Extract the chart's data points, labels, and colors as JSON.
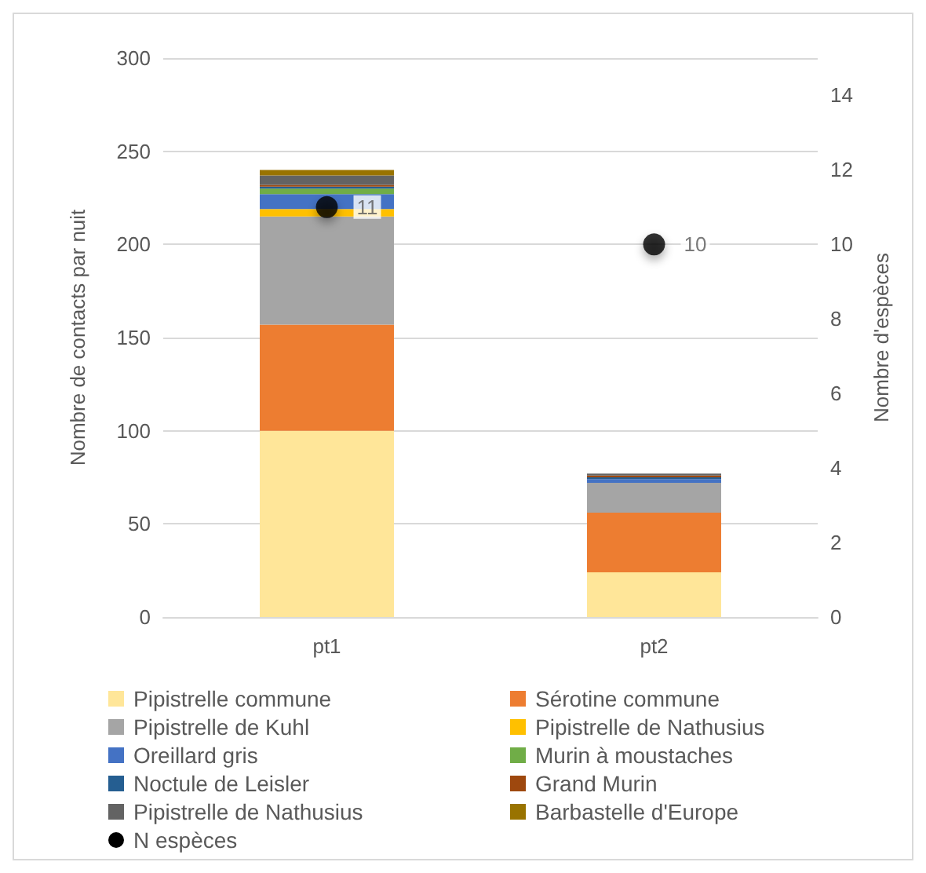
{
  "chart_data": {
    "type": "bar",
    "stacked": true,
    "categories": [
      "pt1",
      "pt2"
    ],
    "ylabel": "Nombre de contacts par nuit",
    "y2label": "Nombre d'espèces",
    "ylim": [
      0,
      300
    ],
    "yticks": [
      0,
      50,
      100,
      150,
      200,
      250,
      300
    ],
    "y2lim": [
      0,
      15
    ],
    "y2ticks": [
      0,
      2,
      4,
      6,
      8,
      10,
      12,
      14
    ],
    "grid": "y",
    "legend": "bottom",
    "series": [
      {
        "name": "Pipistrelle commune",
        "color": "#ffe699",
        "values": [
          100,
          24
        ]
      },
      {
        "name": "Sérotine commune",
        "color": "#ed7d31",
        "values": [
          57,
          32
        ]
      },
      {
        "name": "Pipistrelle de Kuhl",
        "color": "#a5a5a5",
        "values": [
          58,
          16
        ]
      },
      {
        "name": "Pipistrelle de Nathusius",
        "color": "#ffc000",
        "values": [
          4,
          0
        ]
      },
      {
        "name": "Oreillard gris",
        "color": "#4472c4",
        "values": [
          8,
          2
        ]
      },
      {
        "name": "Murin à moustaches",
        "color": "#70ad47",
        "values": [
          3,
          0
        ]
      },
      {
        "name": "Noctule de Leisler",
        "color": "#255e91",
        "values": [
          1,
          1
        ]
      },
      {
        "name": "Grand Murin",
        "color": "#9e480e",
        "values": [
          1,
          1
        ]
      },
      {
        "name": "Pipistrelle de Nathusius",
        "color": "#636363",
        "values": [
          5,
          1
        ]
      },
      {
        "name": "Barbastelle d'Europe",
        "color": "#997300",
        "values": [
          3,
          0
        ]
      },
      {
        "name": "N espèces",
        "type": "scatter",
        "axis": "y2",
        "color": "#000000",
        "marker": "circle",
        "x": [
          "pt1",
          "pt2"
        ],
        "values": [
          11,
          10
        ],
        "value_labels": [
          "11",
          "10"
        ]
      }
    ]
  }
}
